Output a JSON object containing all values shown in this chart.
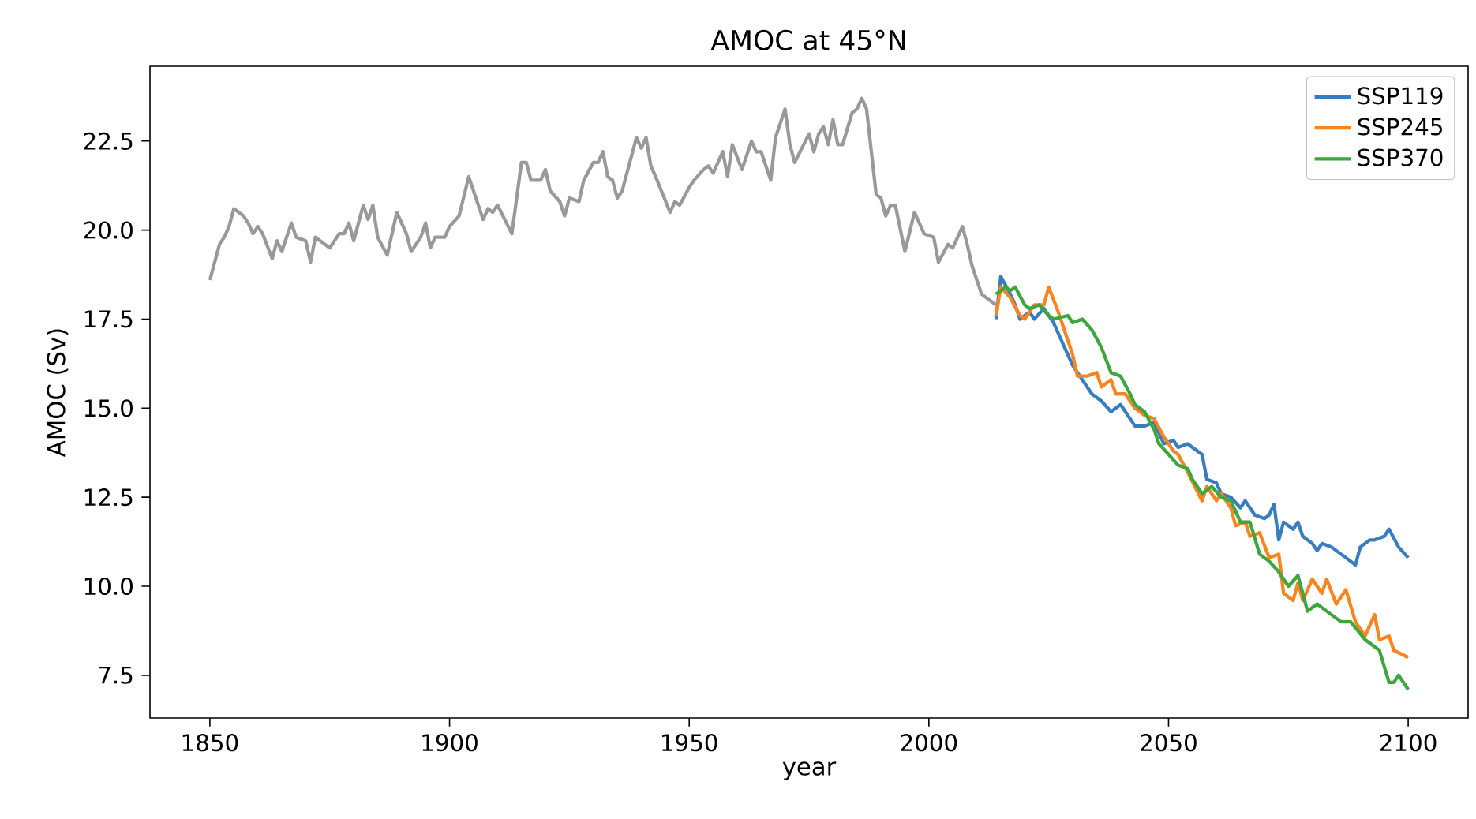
{
  "chart_data": {
    "type": "line",
    "title": "AMOC  at 45°N",
    "xlabel": "year",
    "ylabel": "AMOC (Sv)",
    "xlim": [
      1837.5,
      2112.5
    ],
    "ylim": [
      6.3,
      24.6
    ],
    "xticks": [
      1850,
      1900,
      1950,
      2000,
      2050,
      2100
    ],
    "yticks": [
      7.5,
      {
        "value": 10,
        "label": "10.0"
      },
      12.5,
      {
        "value": 15,
        "label": "15.0"
      },
      17.5,
      {
        "value": 20,
        "label": "20.0"
      },
      22.5
    ],
    "grid": false,
    "legend": "top right",
    "marker": "none",
    "line_style": "solid",
    "series": [
      {
        "color": "#999999",
        "x": [
          1850,
          1852,
          1853,
          1854,
          1855,
          1857,
          1858,
          1859,
          1860,
          1861,
          1863,
          1864,
          1865,
          1867,
          1868,
          1870,
          1871,
          1872,
          1875,
          1877,
          1878,
          1879,
          1880,
          1882,
          1883,
          1884,
          1885,
          1887,
          1889,
          1891,
          1892,
          1894,
          1895,
          1896,
          1897,
          1899,
          1900,
          1902,
          1904,
          1907,
          1908,
          1909,
          1910,
          1913,
          1915,
          1916,
          1917,
          1919,
          1920,
          1921,
          1923,
          1924,
          1925,
          1927,
          1928,
          1930,
          1931,
          1932,
          1933,
          1934,
          1935,
          1936,
          1939,
          1940,
          1941,
          1942,
          1943,
          1946,
          1947,
          1948,
          1950,
          1951,
          1953,
          1954,
          1955,
          1957,
          1958,
          1959,
          1961,
          1963,
          1964,
          1965,
          1967,
          1968,
          1970,
          1971,
          1972,
          1975,
          1976,
          1977,
          1978,
          1979,
          1980,
          1981,
          1982,
          1984,
          1985,
          1986,
          1987,
          1989,
          1990,
          1991,
          1992,
          1993,
          1995,
          1997,
          1999,
          2001,
          2002,
          2004,
          2005,
          2007,
          2008,
          2009,
          2011,
          2012,
          2014
        ],
        "values": [
          18.6,
          19.6,
          19.8,
          20.1,
          20.6,
          20.4,
          20.2,
          19.9,
          20.1,
          19.9,
          19.2,
          19.7,
          19.4,
          20.2,
          19.8,
          19.7,
          19.1,
          19.8,
          19.5,
          19.9,
          19.9,
          20.2,
          19.7,
          20.7,
          20.3,
          20.7,
          19.8,
          19.3,
          20.5,
          19.9,
          19.4,
          19.8,
          20.2,
          19.5,
          19.8,
          19.8,
          20.1,
          20.4,
          21.5,
          20.3,
          20.6,
          20.5,
          20.7,
          19.9,
          21.9,
          21.9,
          21.4,
          21.4,
          21.7,
          21.1,
          20.8,
          20.4,
          20.9,
          20.8,
          21.4,
          21.9,
          21.9,
          22.2,
          21.5,
          21.4,
          20.9,
          21.1,
          22.6,
          22.3,
          22.6,
          21.8,
          21.5,
          20.5,
          20.8,
          20.7,
          21.2,
          21.4,
          21.7,
          21.8,
          21.6,
          22.2,
          21.5,
          22.4,
          21.7,
          22.5,
          22.2,
          22.2,
          21.4,
          22.6,
          23.4,
          22.4,
          21.9,
          22.7,
          22.2,
          22.7,
          22.9,
          22.4,
          23.1,
          22.4,
          22.4,
          23.3,
          23.4,
          23.7,
          23.4,
          21.0,
          20.9,
          20.4,
          20.7,
          20.7,
          19.4,
          20.5,
          19.9,
          19.8,
          19.1,
          19.6,
          19.5,
          20.1,
          19.6,
          19.0,
          18.2,
          18.1,
          17.9
        ]
      },
      {
        "name": "SSP119",
        "color": "#3a7dbf",
        "x": [
          2014,
          2015,
          2017,
          2018,
          2019,
          2021,
          2022,
          2024,
          2026,
          2028,
          2030,
          2032,
          2034,
          2036,
          2038,
          2040,
          2043,
          2045,
          2047,
          2048,
          2049,
          2051,
          2052,
          2054,
          2057,
          2058,
          2060,
          2061,
          2063,
          2065,
          2066,
          2068,
          2070,
          2071,
          2072,
          2073,
          2074,
          2076,
          2077,
          2078,
          2080,
          2081,
          2082,
          2084,
          2085,
          2087,
          2089,
          2090,
          2092,
          2093,
          2095,
          2096,
          2098,
          2100
        ],
        "values": [
          17.5,
          18.7,
          18.2,
          17.9,
          17.5,
          17.7,
          17.5,
          17.8,
          17.4,
          16.8,
          16.2,
          15.8,
          15.4,
          15.2,
          14.9,
          15.1,
          14.5,
          14.5,
          14.6,
          14.3,
          14.0,
          14.1,
          13.9,
          14.0,
          13.7,
          13.0,
          12.9,
          12.6,
          12.5,
          12.2,
          12.4,
          12.0,
          11.9,
          12.0,
          12.3,
          11.3,
          11.8,
          11.6,
          11.8,
          11.4,
          11.2,
          11.0,
          11.2,
          11.1,
          11.0,
          10.8,
          10.6,
          11.1,
          11.3,
          11.3,
          11.4,
          11.6,
          11.1,
          10.8
        ]
      },
      {
        "name": "SSP245",
        "color": "#f98420",
        "x": [
          2014,
          2015,
          2017,
          2019,
          2020,
          2022,
          2024,
          2025,
          2027,
          2028,
          2030,
          2031,
          2033,
          2035,
          2036,
          2038,
          2039,
          2041,
          2043,
          2045,
          2047,
          2049,
          2051,
          2052,
          2054,
          2057,
          2058,
          2060,
          2061,
          2063,
          2064,
          2066,
          2067,
          2069,
          2071,
          2073,
          2074,
          2076,
          2077,
          2078,
          2080,
          2082,
          2083,
          2085,
          2087,
          2089,
          2091,
          2093,
          2094,
          2096,
          2097,
          2100
        ],
        "values": [
          17.6,
          18.4,
          18.1,
          17.6,
          17.5,
          17.9,
          17.9,
          18.4,
          17.7,
          17.3,
          16.5,
          15.9,
          15.9,
          16.0,
          15.6,
          15.8,
          15.4,
          15.4,
          15.0,
          14.8,
          14.7,
          14.2,
          13.8,
          13.7,
          13.2,
          12.4,
          12.8,
          12.4,
          12.6,
          12.2,
          11.7,
          11.8,
          11.4,
          11.5,
          10.8,
          10.9,
          9.8,
          9.6,
          10.1,
          9.6,
          10.2,
          9.8,
          10.2,
          9.5,
          9.9,
          9.0,
          8.6,
          9.2,
          8.5,
          8.6,
          8.2,
          8.0
        ]
      },
      {
        "name": "SSP370",
        "color": "#3ea63e",
        "x": [
          2014,
          2016,
          2017,
          2018,
          2020,
          2021,
          2023,
          2025,
          2026,
          2029,
          2030,
          2032,
          2034,
          2036,
          2038,
          2040,
          2042,
          2043,
          2045,
          2047,
          2048,
          2050,
          2052,
          2054,
          2055,
          2057,
          2059,
          2061,
          2063,
          2065,
          2067,
          2069,
          2071,
          2073,
          2075,
          2077,
          2079,
          2081,
          2083,
          2086,
          2088,
          2091,
          2093,
          2094,
          2096,
          2097,
          2098,
          2100
        ],
        "values": [
          18.2,
          18.4,
          18.3,
          18.4,
          17.9,
          17.8,
          17.9,
          17.6,
          17.5,
          17.6,
          17.4,
          17.5,
          17.2,
          16.7,
          16.0,
          15.9,
          15.4,
          15.1,
          14.9,
          14.4,
          14.0,
          13.7,
          13.4,
          13.3,
          13.0,
          12.6,
          12.8,
          12.5,
          12.4,
          11.8,
          11.8,
          10.9,
          10.7,
          10.4,
          10.0,
          10.3,
          9.3,
          9.5,
          9.3,
          9.0,
          9.0,
          8.5,
          8.3,
          8.2,
          7.3,
          7.3,
          7.5,
          7.1
        ]
      }
    ]
  }
}
